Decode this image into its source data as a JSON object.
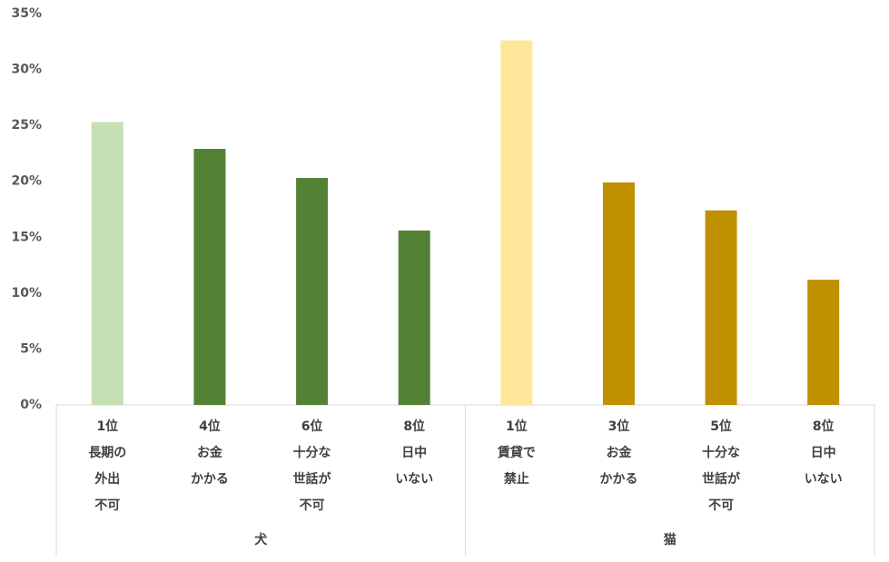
{
  "chart_data": {
    "type": "bar",
    "groups": [
      {
        "name": "犬",
        "categories": [
          "1位\n長期の\n外出\n不可",
          "4位\nお金\nかかる",
          "6位\n十分な\n世話が\n不可",
          "8位\n日中\nいない"
        ],
        "values": [
          25.3,
          22.9,
          20.3,
          15.6
        ],
        "colors": [
          "#c5e0b4",
          "#548235",
          "#548235",
          "#548235"
        ]
      },
      {
        "name": "猫",
        "categories": [
          "1位\n賃貸で\n禁止",
          "3位\nお金\nかかる",
          "5位\n十分な\n世話が\n不可",
          "8位\n日中\nいない"
        ],
        "values": [
          32.6,
          19.9,
          17.4,
          11.2
        ],
        "colors": [
          "#ffe699",
          "#bf9000",
          "#bf9000",
          "#bf9000"
        ]
      }
    ],
    "ylim": [
      0,
      35
    ],
    "yticks": [
      {
        "value": 0,
        "label": "0%"
      },
      {
        "value": 5,
        "label": "5%"
      },
      {
        "value": 10,
        "label": "10%"
      },
      {
        "value": 15,
        "label": "15%"
      },
      {
        "value": 20,
        "label": "20%"
      },
      {
        "value": 25,
        "label": "25%"
      },
      {
        "value": 30,
        "label": "30%"
      },
      {
        "value": 35,
        "label": "35%"
      }
    ],
    "grid": false
  }
}
